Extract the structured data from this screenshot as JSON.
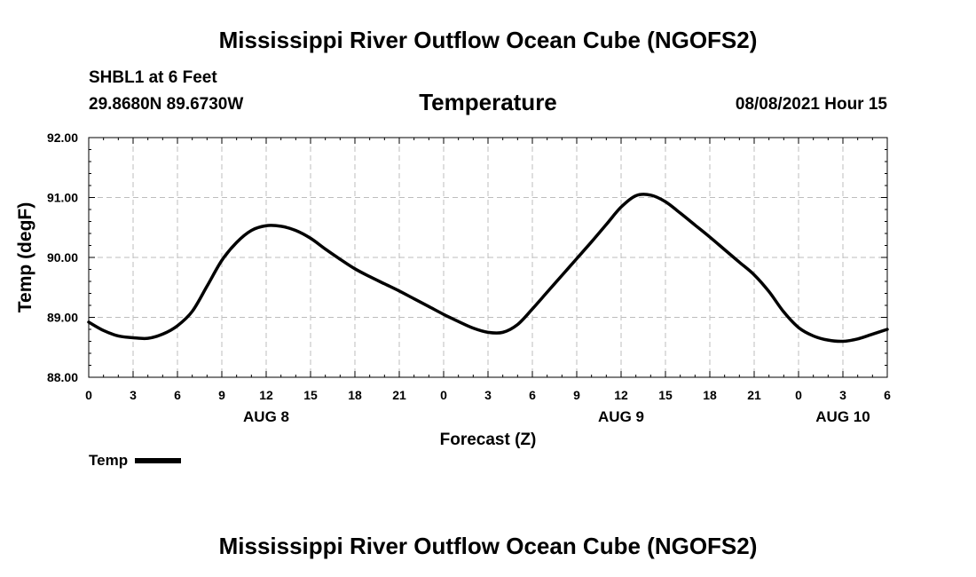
{
  "header": {
    "title": "Mississippi River Outflow Ocean Cube (NGOFS2)",
    "station": "SHBL1 at 6 Feet",
    "location": "29.8680N  89.6730W",
    "datetime": "08/08/2021 Hour 15"
  },
  "footer": {
    "title": "Mississippi River Outflow Ocean Cube (NGOFS2)"
  },
  "legend": {
    "label": "Temp"
  },
  "chart_data": {
    "type": "line",
    "title": "Temperature",
    "xlabel": "Forecast (Z)",
    "ylabel": "Temp (degF)",
    "xlim": [
      0,
      54
    ],
    "ylim": [
      88,
      92
    ],
    "grid": true,
    "x_ticks": [
      0,
      3,
      6,
      9,
      12,
      15,
      18,
      21,
      24,
      27,
      30,
      33,
      36,
      39,
      42,
      45,
      48,
      51,
      54
    ],
    "x_tick_labels": [
      "0",
      "3",
      "6",
      "9",
      "12",
      "15",
      "18",
      "21",
      "0",
      "3",
      "6",
      "9",
      "12",
      "15",
      "18",
      "21",
      "0",
      "3",
      "6"
    ],
    "y_ticks": [
      88,
      89,
      90,
      91,
      92
    ],
    "y_tick_labels": [
      "88.00",
      "89.00",
      "90.00",
      "91.00",
      "92.00"
    ],
    "date_labels": [
      {
        "x": 12,
        "label": "AUG 8"
      },
      {
        "x": 36,
        "label": "AUG 9"
      },
      {
        "x": 51,
        "label": "AUG 10"
      }
    ],
    "series": [
      {
        "name": "Temp",
        "color": "#000000",
        "x": [
          0,
          1,
          2,
          3,
          4,
          5,
          6,
          7,
          8,
          9,
          10,
          11,
          12,
          13,
          14,
          15,
          16,
          17,
          18,
          19,
          20,
          21,
          22,
          23,
          24,
          25,
          26,
          27,
          28,
          29,
          30,
          31,
          32,
          33,
          34,
          35,
          36,
          37,
          38,
          39,
          40,
          41,
          42,
          43,
          44,
          45,
          46,
          47,
          48,
          49,
          50,
          51,
          52,
          53,
          54
        ],
        "y": [
          88.92,
          88.78,
          88.69,
          88.66,
          88.65,
          88.72,
          88.86,
          89.1,
          89.52,
          89.95,
          90.25,
          90.45,
          90.53,
          90.52,
          90.45,
          90.32,
          90.14,
          89.97,
          89.81,
          89.68,
          89.56,
          89.44,
          89.31,
          89.18,
          89.05,
          88.93,
          88.82,
          88.75,
          88.75,
          88.88,
          89.14,
          89.42,
          89.7,
          89.98,
          90.26,
          90.55,
          90.84,
          91.03,
          91.04,
          90.93,
          90.74,
          90.54,
          90.34,
          90.13,
          89.92,
          89.71,
          89.43,
          89.09,
          88.83,
          88.69,
          88.62,
          88.6,
          88.64,
          88.72,
          88.8
        ]
      }
    ]
  }
}
